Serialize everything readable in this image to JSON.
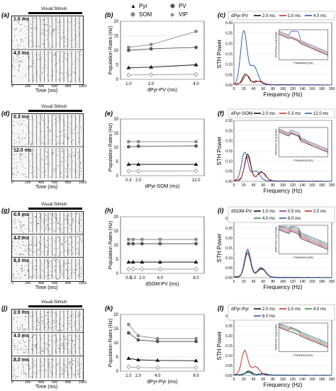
{
  "panel_labels": [
    "(a)",
    "(b)",
    "(c)",
    "(d)",
    "(e)",
    "(f)",
    "(g)",
    "(h)",
    "(i)",
    "(j)",
    "(k)",
    "(l)"
  ],
  "raster": {
    "stimulus_label": "Visual Stimuli",
    "time_label": "Time (ms)",
    "ticks": [
      "0",
      "200",
      "400",
      "600",
      "800",
      "1000"
    ],
    "rows": [
      {
        "labels": [
          "1.0 ms",
          "4.0 ms"
        ]
      },
      {
        "labels": [
          "0.3 ms",
          "12.0 ms"
        ]
      },
      {
        "labels": [
          "0.5 ms",
          "4.0 ms",
          "8.0 ms"
        ]
      },
      {
        "labels": [
          "1.0 ms",
          "4.0 ms",
          "8.0 ms"
        ]
      }
    ]
  },
  "top_legend": {
    "pyr": "Pyr",
    "pv": "PV",
    "som": "SOM",
    "vip": "VIP"
  },
  "colors": {
    "c1": "#000000",
    "c2": "#c81e1e",
    "c3": "#1f4fa8",
    "c4": "#2e8b2e",
    "pyr": "#111111",
    "pv": "#555555",
    "som": "#8a8a8a",
    "vip": "#9a9a9a"
  },
  "chart_data": [
    {
      "type": "line",
      "ylabel": "Population Rates (Hz)",
      "xlabel": "dPyr-PV (ms)",
      "x": [
        1.0,
        2.0,
        4.0
      ],
      "xticks": [
        "1.0",
        "2.0",
        "4.0"
      ],
      "ylim": [
        0,
        20
      ],
      "yticks": [
        "0",
        "5",
        "10",
        "15",
        "20"
      ],
      "series": [
        {
          "name": "SOM",
          "values": [
            11,
            12,
            16.5
          ]
        },
        {
          "name": "PV",
          "values": [
            10,
            10.5,
            11
          ]
        },
        {
          "name": "Pyr",
          "values": [
            4,
            4.2,
            5
          ]
        },
        {
          "name": "VIP",
          "values": [
            1.5,
            1.6,
            1.7
          ]
        }
      ]
    },
    {
      "type": "line",
      "ylabel": "Population Rates (Hz)",
      "xlabel": "dPyr-SOM (ms)",
      "x": [
        0.3,
        2.0,
        12.0
      ],
      "xticks": [
        "0.3",
        "2.0",
        "12.0"
      ],
      "ylim": [
        0,
        20
      ],
      "yticks": [
        "0",
        "5",
        "10",
        "15",
        "20"
      ],
      "series": [
        {
          "name": "SOM",
          "values": [
            12,
            12,
            12
          ]
        },
        {
          "name": "PV",
          "values": [
            10.2,
            10.4,
            10.5
          ]
        },
        {
          "name": "Pyr",
          "values": [
            4,
            4,
            4
          ]
        },
        {
          "name": "VIP",
          "values": [
            1.6,
            1.6,
            1.7
          ]
        }
      ]
    },
    {
      "type": "line",
      "ylabel": "Population Rates (Hz)",
      "xlabel": "dSOM-PV (ms)",
      "x": [
        0.5,
        1.0,
        2.0,
        4.0,
        8.0
      ],
      "xticks": [
        "0.5",
        "1.0",
        "2.0",
        "4.0",
        "8.0"
      ],
      "ylim": [
        0,
        20
      ],
      "yticks": [
        "0",
        "5",
        "10",
        "15",
        "20"
      ],
      "series": [
        {
          "name": "SOM",
          "values": [
            12,
            12,
            12,
            12,
            12
          ]
        },
        {
          "name": "PV",
          "values": [
            10.5,
            10.5,
            10.5,
            10.5,
            10.5
          ]
        },
        {
          "name": "Pyr",
          "values": [
            4,
            4,
            4,
            4,
            4
          ]
        },
        {
          "name": "VIP",
          "values": [
            1.5,
            1.5,
            1.5,
            1.5,
            1.5
          ]
        }
      ]
    },
    {
      "type": "line",
      "ylabel": "Population Rates (Hz)",
      "xlabel": "dPyr-Pyr (ms)",
      "x": [
        1.0,
        2.0,
        4.0,
        8.0
      ],
      "xticks": [
        "1.0",
        "2.0",
        "4.0",
        "8.0"
      ],
      "ylim": [
        0,
        20
      ],
      "yticks": [
        "0",
        "5",
        "10",
        "15",
        "20"
      ],
      "series": [
        {
          "name": "SOM",
          "values": [
            16.5,
            12.5,
            11.5,
            11.5
          ]
        },
        {
          "name": "PV",
          "values": [
            13.5,
            11,
            10.5,
            10.5
          ]
        },
        {
          "name": "Pyr",
          "values": [
            4.5,
            4,
            3.8,
            3.7
          ]
        },
        {
          "name": "VIP",
          "values": [
            1.5,
            1.3,
            1.2,
            1.2
          ]
        }
      ]
    },
    {
      "type": "line",
      "ylabel": "STH Power",
      "xlabel": "Frequency (Hz)",
      "legend_title": "dPyr-PV",
      "xlim": [
        0,
        200
      ],
      "ylim": [
        0,
        0.3
      ],
      "xticks": [
        "0",
        "20",
        "40",
        "60",
        "80",
        "100",
        "120",
        "140",
        "160",
        "180",
        "200"
      ],
      "yticks": [
        "0.00",
        "0.05",
        "0.10",
        "0.15",
        "0.20",
        "0.25",
        "0.30"
      ],
      "series": [
        {
          "name": "2.0 ms",
          "peak": 0.05,
          "peak_f": 24
        },
        {
          "name": "1.0 ms",
          "peak": 0.045,
          "peak_f": 26
        },
        {
          "name": "4.0 ms",
          "peak": 0.255,
          "peak_f": 20
        }
      ],
      "inset": {
        "ylabel": "STH Power (Log Scale)",
        "xlabel": "Frequency (Hz)"
      }
    },
    {
      "type": "line",
      "ylabel": "STH Power",
      "xlabel": "Frequency (Hz)",
      "legend_title": "dPyr-SOM",
      "xlim": [
        0,
        200
      ],
      "ylim": [
        0,
        0.3
      ],
      "xticks": [
        "0",
        "20",
        "40",
        "60",
        "80",
        "100",
        "120",
        "140",
        "160",
        "180",
        "200"
      ],
      "yticks": [
        "0.00",
        "0.05",
        "0.10",
        "0.15",
        "0.20",
        "0.25",
        "0.30"
      ],
      "series": [
        {
          "name": "2.0 ms",
          "peak": 0.13,
          "peak_f": 28
        },
        {
          "name": "0.3 ms",
          "peak": 0.12,
          "peak_f": 28
        },
        {
          "name": "12.0 ms",
          "peak": 0.14,
          "peak_f": 22
        }
      ],
      "inset": {
        "ylabel": "STH Power (Log Scale)",
        "xlabel": "Frequency (Hz)"
      }
    },
    {
      "type": "line",
      "ylabel": "STH Power",
      "xlabel": "Frequency (Hz)",
      "legend_title": "dSOM-PV",
      "xlim": [
        0,
        200
      ],
      "ylim": [
        0,
        0.3
      ],
      "xticks": [
        "0",
        "20",
        "40",
        "60",
        "80",
        "100",
        "120",
        "140",
        "160",
        "180",
        "200"
      ],
      "yticks": [
        "0.00",
        "0.05",
        "0.10",
        "0.15",
        "0.20",
        "0.25",
        "0.30"
      ],
      "series": [
        {
          "name": "1.0 ms",
          "peak": 0.12,
          "peak_f": 28
        },
        {
          "name": "0.5 ms",
          "peak": 0.12,
          "peak_f": 28
        },
        {
          "name": "2.0 ms",
          "peak": 0.12,
          "peak_f": 28
        },
        {
          "name": "4.0 ms",
          "peak": 0.13,
          "peak_f": 28
        },
        {
          "name": "8.0 ms",
          "peak": 0.14,
          "peak_f": 28
        }
      ],
      "inset": {
        "ylabel": "STH Power (Log Scale)",
        "xlabel": "Frequency (Hz)"
      }
    },
    {
      "type": "line",
      "ylabel": "STH Power",
      "xlabel": "Frequency (Hz)",
      "legend_title": "dPyr-Pyr",
      "xlim": [
        0,
        200
      ],
      "ylim": [
        0,
        0.3
      ],
      "xticks": [
        "0",
        "20",
        "40",
        "60",
        "80",
        "100",
        "120",
        "140",
        "160",
        "180",
        "200"
      ],
      "yticks": [
        "0.00",
        "0.05",
        "0.10",
        "0.15",
        "0.20",
        "0.25",
        "0.30"
      ],
      "series": [
        {
          "name": "2.0 ms",
          "peak": 0.02,
          "peak_f": 30
        },
        {
          "name": "1.0 ms",
          "peak": 0.12,
          "peak_f": 22
        },
        {
          "name": "4.0 ms",
          "peak": 0.015,
          "peak_f": 30
        },
        {
          "name": "8.0 ms",
          "peak": 0.012,
          "peak_f": 30
        }
      ],
      "inset": {
        "ylabel": "STH Power (Log Scale)",
        "xlabel": "Frequency (Hz)"
      }
    }
  ]
}
